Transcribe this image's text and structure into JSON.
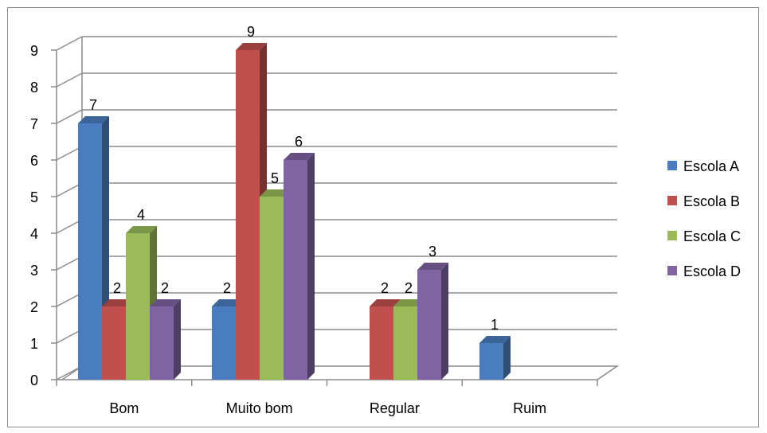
{
  "chart_data": {
    "type": "bar",
    "title": "",
    "xlabel": "",
    "ylabel": "",
    "categories": [
      "Bom",
      "Muito bom",
      "Regular",
      "Ruim"
    ],
    "series": [
      {
        "name": "Escola A",
        "color": "#4a7dbf",
        "values": [
          7,
          2,
          null,
          1
        ]
      },
      {
        "name": "Escola B",
        "color": "#c0504d",
        "values": [
          2,
          9,
          2,
          null
        ]
      },
      {
        "name": "Escola C",
        "color": "#9bbb59",
        "values": [
          4,
          5,
          2,
          null
        ]
      },
      {
        "name": "Escola D",
        "color": "#8064a2",
        "values": [
          2,
          6,
          3,
          null
        ]
      }
    ],
    "ylim": [
      0,
      9
    ],
    "yticks": [
      0,
      1,
      2,
      3,
      4,
      5,
      6,
      7,
      8,
      9
    ],
    "grid": true,
    "legend": "right",
    "data_labels": true,
    "three_d": true
  }
}
